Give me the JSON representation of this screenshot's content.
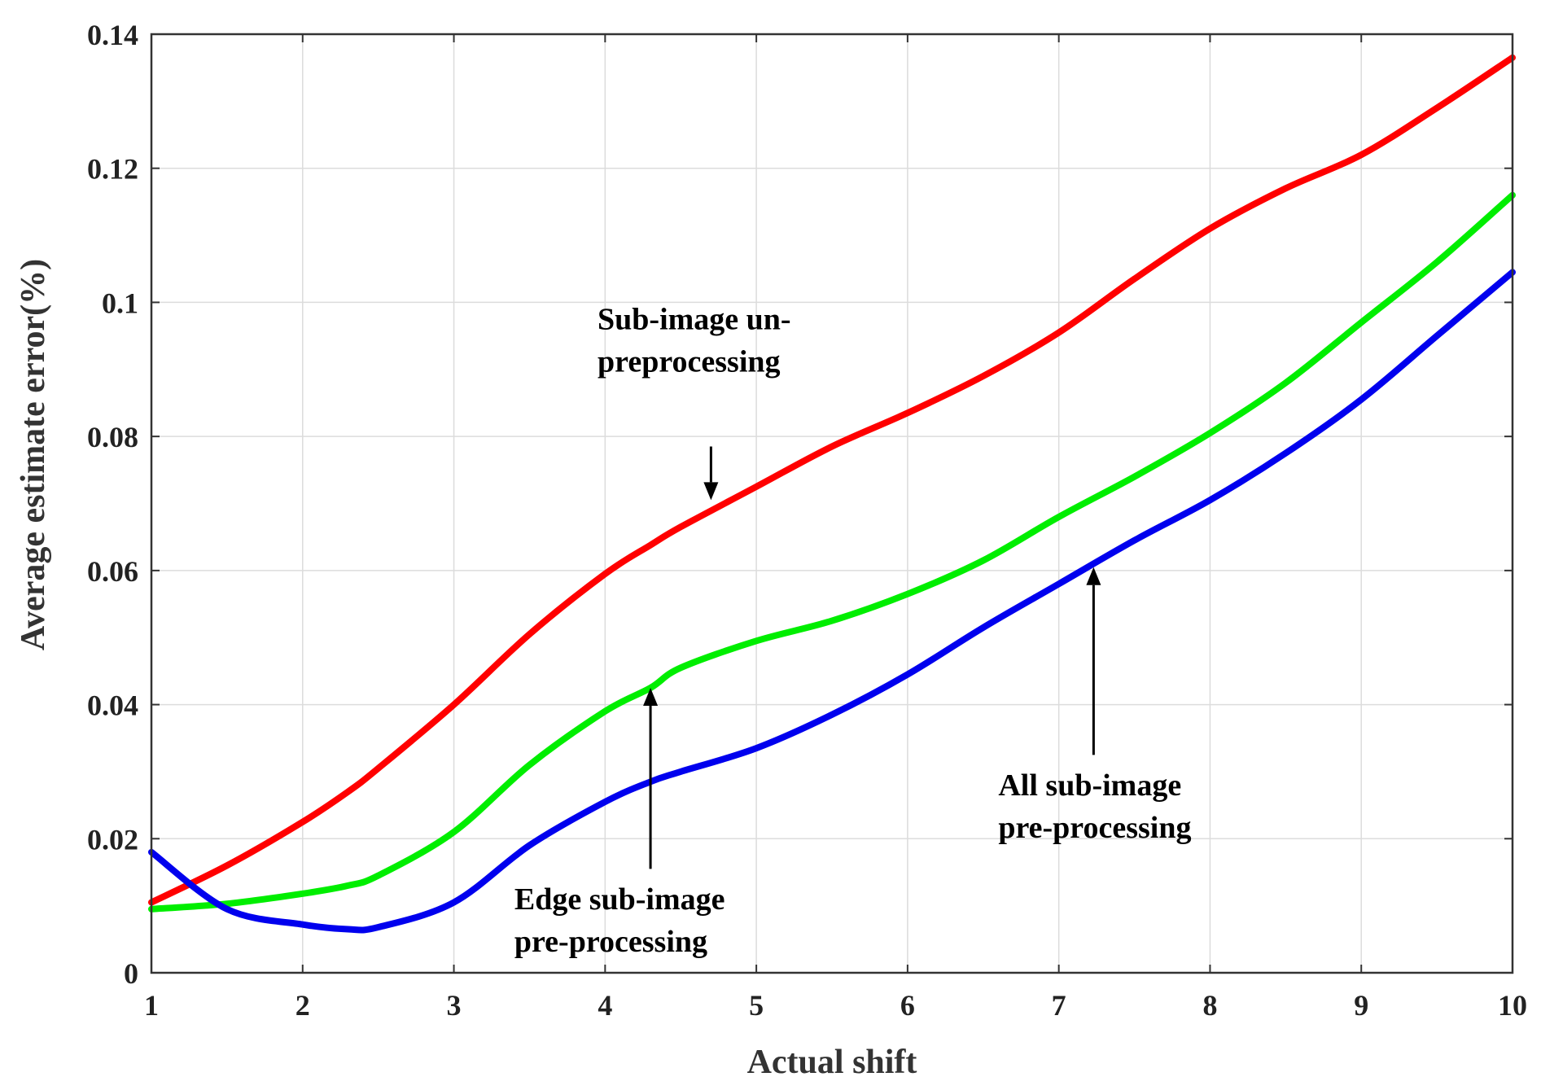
{
  "chart_data": {
    "type": "line",
    "title": "",
    "xlabel": "Actual shift",
    "ylabel": "Average estimate error(%)",
    "xlim": [
      1,
      10
    ],
    "ylim": [
      0,
      0.14
    ],
    "grid": true,
    "x_ticks": [
      1,
      2,
      3,
      4,
      5,
      6,
      7,
      8,
      9,
      10
    ],
    "x_tick_labels": [
      "1",
      "2",
      "3",
      "4",
      "5",
      "6",
      "7",
      "8",
      "9",
      "10"
    ],
    "y_ticks": [
      0,
      0.02,
      0.04,
      0.06,
      0.08,
      0.1,
      0.12,
      0.14
    ],
    "y_tick_labels": [
      "0",
      "0.02",
      "0.04",
      "0.06",
      "0.08",
      "0.1",
      "0.12",
      "0.14"
    ],
    "x": [
      1,
      1.5,
      2,
      2.3,
      2.5,
      3,
      3.5,
      4,
      4.3,
      4.5,
      5,
      5.5,
      6,
      6.5,
      7,
      7.5,
      8,
      8.5,
      9,
      9.5,
      10
    ],
    "series": [
      {
        "color": "#ff0000",
        "values": [
          0.0105,
          0.016,
          0.0225,
          0.027,
          0.0305,
          0.04,
          0.0505,
          0.0595,
          0.0638,
          0.0665,
          0.0725,
          0.0785,
          0.0835,
          0.089,
          0.0955,
          0.1035,
          0.111,
          0.117,
          0.122,
          0.129,
          0.1365
        ]
      },
      {
        "color": "#00ee00",
        "values": [
          0.0095,
          0.0103,
          0.0118,
          0.013,
          0.0145,
          0.021,
          0.031,
          0.039,
          0.0425,
          0.0455,
          0.0495,
          0.0525,
          0.0565,
          0.0615,
          0.068,
          0.074,
          0.0805,
          0.088,
          0.097,
          0.106,
          0.116
        ]
      },
      {
        "color": "#0000ee",
        "values": [
          0.018,
          0.0095,
          0.0072,
          0.0065,
          0.0068,
          0.0105,
          0.019,
          0.0255,
          0.0285,
          0.03,
          0.0335,
          0.0385,
          0.0445,
          0.0515,
          0.058,
          0.0645,
          0.0705,
          0.0775,
          0.0855,
          0.095,
          0.1045
        ]
      }
    ],
    "annotations": [
      {
        "lines": [
          "Sub-image un-",
          "preprocessing"
        ],
        "arrow_direction": "down",
        "arrow_tip": [
          4.7,
          0.0705
        ],
        "arrow_tail": [
          4.7,
          0.0785
        ],
        "text_anchor": [
          3.95,
          0.096
        ]
      },
      {
        "lines": [
          "Edge  sub-image",
          "pre-processing"
        ],
        "arrow_direction": "up",
        "arrow_tip": [
          4.3,
          0.0425
        ],
        "arrow_tail": [
          4.3,
          0.0155
        ],
        "text_anchor": [
          3.4,
          0.0095
        ]
      },
      {
        "lines": [
          "All sub-image",
          "pre-processing"
        ],
        "arrow_direction": "up",
        "arrow_tip": [
          7.23,
          0.0605
        ],
        "arrow_tail": [
          7.23,
          0.0325
        ],
        "text_anchor": [
          6.6,
          0.0265
        ]
      }
    ]
  }
}
